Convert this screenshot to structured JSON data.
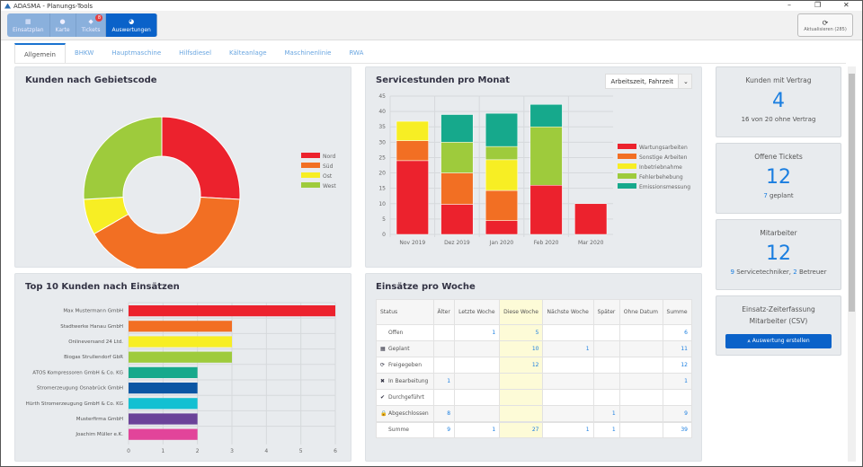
{
  "window": {
    "title": "ADASMA - Planungs-Tools"
  },
  "toolbar": {
    "items": [
      {
        "label": "Einsatzplan",
        "icon": "calendar-icon"
      },
      {
        "label": "Karte",
        "icon": "globe-icon"
      },
      {
        "label": "Tickets",
        "icon": "tags-icon",
        "badge": "8"
      },
      {
        "label": "Auswertungen",
        "icon": "pie-chart-icon",
        "active": true
      }
    ],
    "refresh_label": "Aktualisieren (285)"
  },
  "tabs": [
    "Allgemein",
    "BHKW",
    "Hauptmaschine",
    "Hilfsdiesel",
    "Kälteanlage",
    "Maschinenlinie",
    "RWA"
  ],
  "colors": {
    "red": "#ec222d",
    "orange": "#f26f23",
    "yellow": "#f7ee24",
    "green": "#9ecb3c",
    "teal": "#16a98c",
    "accent": "#0a62c9"
  },
  "chart_data": [
    {
      "type": "pie",
      "title": "Kunden nach Gebietscode",
      "categories": [
        "Nord",
        "Süd",
        "Ost",
        "West"
      ],
      "values": [
        7,
        11,
        2,
        7
      ],
      "colors": [
        "#ec222d",
        "#f26f23",
        "#f7ee24",
        "#9ecb3c"
      ],
      "donut": true,
      "legend": "right"
    },
    {
      "type": "bar",
      "stacked": true,
      "title": "Servicestunden pro Monat",
      "filter": "Arbeitszeit, Fahrzeit",
      "categories": [
        "Nov 2019",
        "Dez 2019",
        "Jan 2020",
        "Feb 2020",
        "Mar 2020"
      ],
      "ylim": [
        0,
        45
      ],
      "yticks": [
        0,
        5,
        10,
        15,
        20,
        25,
        30,
        35,
        40,
        45
      ],
      "grid": true,
      "legend": "right",
      "series": [
        {
          "name": "Wartungsarbeiten",
          "color": "#ec222d",
          "values": [
            24,
            9.8,
            4.5,
            16,
            10
          ]
        },
        {
          "name": "Sonstige Arbeiten",
          "color": "#f26f23",
          "values": [
            6.5,
            10.2,
            9.8,
            0,
            0
          ]
        },
        {
          "name": "Inbetriebnahme",
          "color": "#f7ee24",
          "values": [
            6.3,
            0,
            10,
            0,
            0
          ]
        },
        {
          "name": "Fehlerbehebung",
          "color": "#9ecb3c",
          "values": [
            0,
            10,
            4.3,
            19,
            0
          ]
        },
        {
          "name": "Emissionsmessung",
          "color": "#16a98c",
          "values": [
            0,
            9,
            10.8,
            7.3,
            0
          ]
        }
      ]
    },
    {
      "type": "bar",
      "orientation": "horizontal",
      "title": "Top 10 Kunden nach Einsätzen",
      "categories": [
        "Max Mustermann GmbH",
        "Stadtwerke Hanau GmbH",
        "Onlineversand 24 Ltd.",
        "Biogas Strullendorf GbR",
        "ATOS Kompressoren GmbH & Co. KG",
        "Stromerzeugung Osnabrück GmbH",
        "Hürth Stromerzeugung GmbH & Co. KG",
        "Musterfirma GmbH",
        "Joachim Müller e.K."
      ],
      "values": [
        6,
        3,
        3,
        3,
        2,
        2,
        2,
        2,
        2
      ],
      "colors": [
        "#ec222d",
        "#f26f23",
        "#f7ee24",
        "#9ecb3c",
        "#16a98c",
        "#0b56a4",
        "#13c0d2",
        "#6b4399",
        "#e2449a"
      ],
      "xlim": [
        0,
        6
      ],
      "xticks": [
        0,
        1,
        2,
        3,
        4,
        5,
        6
      ],
      "grid": true
    }
  ],
  "einsaetze": {
    "title": "Einsätze pro Woche",
    "headers": [
      "Status",
      "Älter",
      "Letzte Woche",
      "Diese Woche",
      "Nächste Woche",
      "Später",
      "Ohne Datum",
      "Summe"
    ],
    "rows": [
      {
        "status": "Offen",
        "icon": "",
        "cells": [
          "",
          "1",
          "5",
          "",
          "",
          "",
          "6"
        ]
      },
      {
        "status": "Geplant",
        "icon": "calendar-icon",
        "cells": [
          "",
          "",
          "10",
          "1",
          "",
          "",
          "11"
        ]
      },
      {
        "status": "Freigegeben",
        "icon": "refresh-icon",
        "cells": [
          "",
          "",
          "12",
          "",
          "",
          "",
          "12"
        ]
      },
      {
        "status": "In Bearbeitung",
        "icon": "tools-icon",
        "cells": [
          "1",
          "",
          "",
          "",
          "",
          "",
          "1"
        ]
      },
      {
        "status": "Durchgeführt",
        "icon": "check-icon",
        "cells": [
          "",
          "",
          "",
          "",
          "",
          "",
          ""
        ]
      },
      {
        "status": "Abgeschlossen",
        "icon": "lock-icon",
        "cells": [
          "8",
          "",
          "",
          "",
          "1",
          "",
          "9"
        ]
      }
    ],
    "total": {
      "status": "Summe",
      "cells": [
        "9",
        "1",
        "27",
        "1",
        "1",
        "",
        "39"
      ]
    }
  },
  "cards": {
    "vertrag": {
      "title": "Kunden mit Vertrag",
      "value": "4",
      "sub": "16 von 20 ohne Vertrag"
    },
    "tickets": {
      "title": "Offene Tickets",
      "value": "12",
      "sub_num": "7",
      "sub": "geplant"
    },
    "mitarbeiter": {
      "title": "Mitarbeiter",
      "value": "12",
      "n1": "9",
      "l1": "Servicetechniker,",
      "n2": "2",
      "l2": "Betreuer"
    },
    "csv": {
      "title": "Einsatz-Zeiterfassung Mitarbeiter (CSV)",
      "button": "Auswertung erstellen"
    }
  }
}
